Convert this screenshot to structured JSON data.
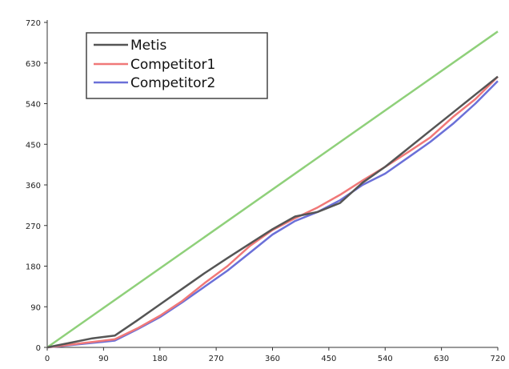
{
  "chart_data": {
    "type": "line",
    "x_ticks": [
      "0",
      "90",
      "180",
      "270",
      "360",
      "450",
      "540",
      "630",
      "720"
    ],
    "y_ticks": [
      "0",
      "90",
      "180",
      "270",
      "360",
      "450",
      "540",
      "630",
      "720"
    ],
    "xlim": [
      0,
      720
    ],
    "ylim": [
      0,
      720
    ],
    "grid": false,
    "legend_position": "top-left",
    "series": [
      {
        "name": "Metis",
        "color": "#555555",
        "x": [
          0,
          36,
          72,
          108,
          144,
          180,
          216,
          252,
          288,
          324,
          360,
          396,
          432,
          468,
          504,
          540,
          576,
          612,
          648,
          684,
          720
        ],
        "y": [
          0,
          10,
          20,
          26,
          60,
          95,
          130,
          165,
          198,
          230,
          262,
          290,
          300,
          320,
          365,
          400,
          440,
          480,
          520,
          560,
          600
        ]
      },
      {
        "name": "Competitor1",
        "color": "#f07878",
        "x": [
          0,
          36,
          72,
          108,
          144,
          180,
          216,
          252,
          288,
          324,
          360,
          396,
          432,
          468,
          504,
          540,
          576,
          612,
          648,
          684,
          720
        ],
        "y": [
          0,
          6,
          12,
          18,
          42,
          70,
          103,
          143,
          180,
          225,
          260,
          286,
          310,
          338,
          370,
          400,
          432,
          465,
          510,
          550,
          600
        ]
      },
      {
        "name": "Competitor2",
        "color": "#6b70d8",
        "x": [
          0,
          36,
          72,
          108,
          144,
          180,
          216,
          252,
          288,
          324,
          360,
          396,
          432,
          468,
          504,
          540,
          576,
          612,
          648,
          684,
          720
        ],
        "y": [
          0,
          5,
          10,
          15,
          40,
          67,
          100,
          135,
          170,
          210,
          250,
          280,
          300,
          326,
          360,
          385,
          420,
          455,
          495,
          540,
          590
        ]
      },
      {
        "color": "#8fd07a",
        "x": [
          0,
          720
        ],
        "y": [
          0,
          700
        ]
      }
    ]
  }
}
